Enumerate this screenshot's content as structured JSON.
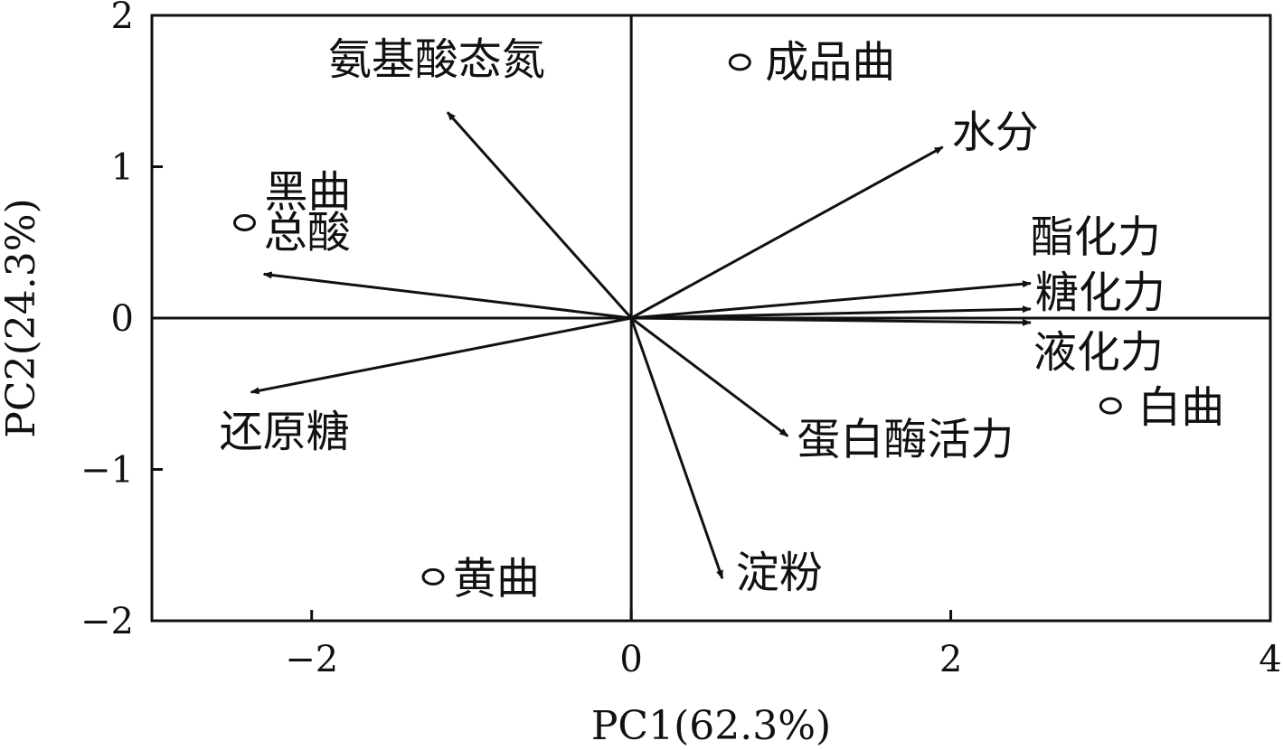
{
  "chart_data": {
    "type": "scatter",
    "subtype": "pca-biplot",
    "title": "",
    "xlabel": "PC1(62.3%)",
    "ylabel": "PC2(24.3%)",
    "xlim": [
      -3,
      4
    ],
    "ylim": [
      -2,
      2
    ],
    "x_ticks": [
      -2,
      0,
      2,
      4
    ],
    "x_tick_labels": [
      "−2",
      "0",
      "2",
      "4"
    ],
    "y_ticks": [
      -2,
      -1,
      0,
      1,
      2
    ],
    "y_tick_labels": [
      "−2",
      "−1",
      "0",
      "1",
      "2"
    ],
    "grid": false,
    "zero_lines": true,
    "samples": [
      {
        "label": "成品曲",
        "x": 0.68,
        "y": 1.69
      },
      {
        "label": "黑曲",
        "x": -2.42,
        "y": 0.63
      },
      {
        "label": "白曲",
        "x": 3.0,
        "y": -0.58
      },
      {
        "label": "黄曲",
        "x": -1.24,
        "y": -1.71
      }
    ],
    "loadings": [
      {
        "label": "氨基酸态氮",
        "x": -1.15,
        "y": 1.36
      },
      {
        "label": "水分",
        "x": 1.95,
        "y": 1.13
      },
      {
        "label": "总酸",
        "x": -2.3,
        "y": 0.29
      },
      {
        "label": "酯化力",
        "x": 2.5,
        "y": 0.23
      },
      {
        "label": "糖化力",
        "x": 2.5,
        "y": 0.06
      },
      {
        "label": "液化力",
        "x": 2.5,
        "y": -0.03
      },
      {
        "label": "还原糖",
        "x": -2.38,
        "y": -0.49
      },
      {
        "label": "蛋白酶活力",
        "x": 0.98,
        "y": -0.78
      },
      {
        "label": "淀粉",
        "x": 0.57,
        "y": -1.72
      }
    ]
  }
}
